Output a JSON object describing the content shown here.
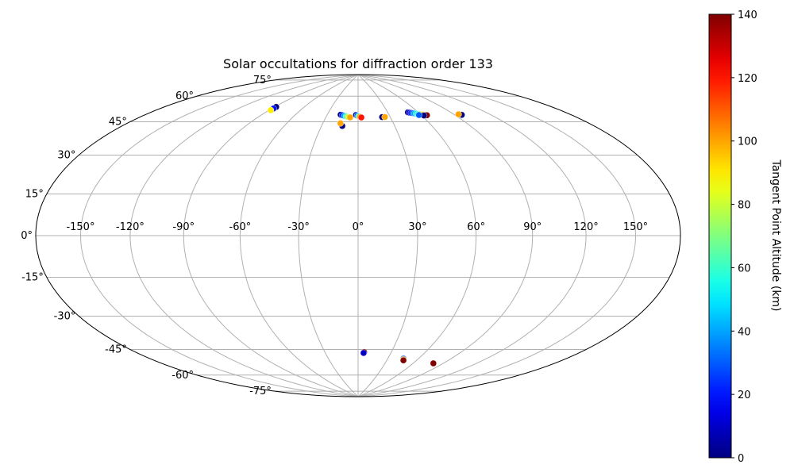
{
  "chart_data": {
    "type": "scatter",
    "projection": "hammer",
    "title": "Solar occultations for diffraction order 133",
    "grid": true,
    "lon_tick_labels": [
      "-150°",
      "-120°",
      "-90°",
      "-60°",
      "-30°",
      "0°",
      "30°",
      "60°",
      "90°",
      "120°",
      "150°"
    ],
    "lat_tick_labels": [
      "75°",
      "60°",
      "45°",
      "30°",
      "15°",
      "0°",
      "-15°",
      "-30°",
      "-45°",
      "-60°",
      "-75°"
    ],
    "lon_ticks": [
      -150,
      -120,
      -90,
      -60,
      -30,
      0,
      30,
      60,
      90,
      120,
      150
    ],
    "lat_ticks": [
      75,
      60,
      45,
      30,
      15,
      0,
      -15,
      -30,
      -45,
      -60,
      -75
    ],
    "colorbar": {
      "label": "Tangent Point Altitude (km)",
      "colormap": "jet",
      "range": [
        0,
        140
      ],
      "tick_values": [
        0,
        20,
        40,
        60,
        80,
        100,
        120,
        140
      ],
      "tick_labels": [
        "0",
        "20",
        "40",
        "60",
        "80",
        "100",
        "120",
        "140"
      ]
    },
    "tracks": [
      {
        "lon_start": -88.5,
        "lat_start": 65.5,
        "lon_end": -88.5,
        "lat_end": 63.5
      },
      {
        "lon_start": -17.0,
        "lat_start": 64.0,
        "lon_end": -7.5,
        "lat_end": 62.5
      },
      {
        "lon_start": -2.0,
        "lat_start": 64.0,
        "lon_end": 3.0,
        "lat_end": 62.5
      },
      {
        "lon_start": -13.0,
        "lat_start": 57.5,
        "lon_end": -15.0,
        "lat_end": 59.0
      },
      {
        "lon_start": 22.5,
        "lat_start": 62.5,
        "lon_end": 25.0,
        "lat_end": 62.5
      },
      {
        "lon_start": 50.0,
        "lat_start": 64.5,
        "lon_end": 65.0,
        "lat_end": 62.0
      },
      {
        "lon_start": 62.0,
        "lat_start": 62.0,
        "lon_end": 58.0,
        "lat_end": 62.5
      },
      {
        "lon_start": 96.0,
        "lat_start": 60.0,
        "lon_end": 94.0,
        "lat_end": 60.5
      },
      {
        "lon_start": 5.5,
        "lat_start": -61.5,
        "lon_end": 5.0,
        "lat_end": -62.0
      },
      {
        "lon_start": 45.5,
        "lat_start": -64.5,
        "lon_end": 47.0,
        "lat_end": -65.5
      },
      {
        "lon_start": 80.5,
        "lat_start": -65.5,
        "lon_end": 80.5,
        "lat_end": -65.5
      }
    ],
    "track_altitudes": [
      [
        0,
        20,
        90
      ],
      [
        0,
        20,
        40,
        60,
        80,
        100
      ],
      [
        0,
        30,
        60,
        100,
        120
      ],
      [
        0,
        100
      ],
      [
        0,
        100
      ],
      [
        0,
        10,
        20,
        30,
        40,
        50,
        60,
        70,
        80,
        100,
        120,
        140
      ],
      [
        0,
        30
      ],
      [
        0,
        100
      ],
      [
        140,
        10
      ],
      [
        30,
        100,
        140
      ],
      [
        140
      ]
    ]
  }
}
